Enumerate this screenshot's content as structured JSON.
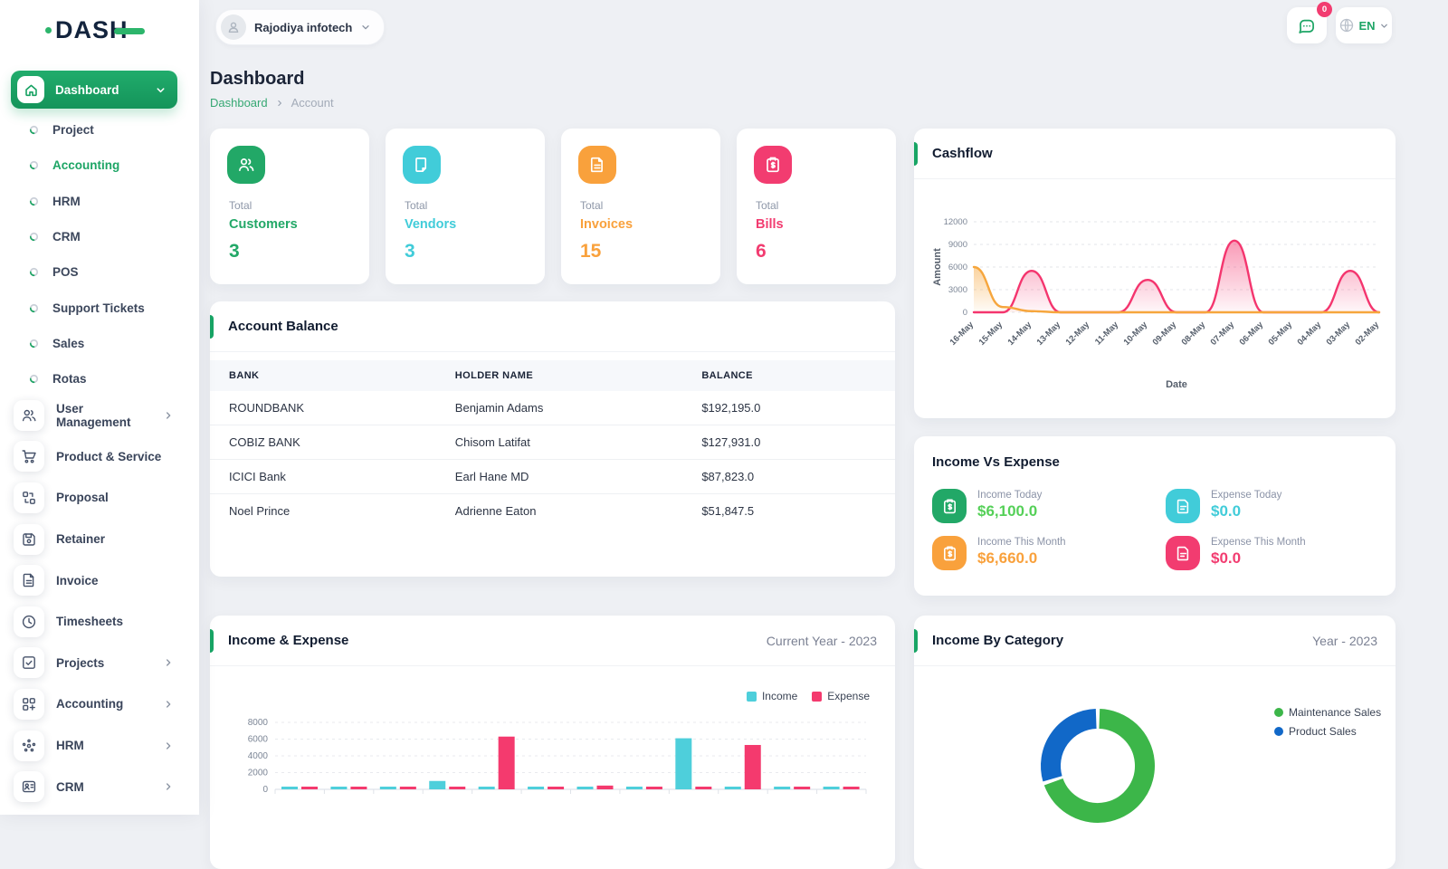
{
  "colors": {
    "primary_green": "#1da565",
    "cyan": "#41ccd9",
    "orange": "#f9a13c",
    "pink": "#f23c70",
    "donut_green": "#3cb649",
    "donut_blue": "#1168c8"
  },
  "logo": {
    "text": "DASH"
  },
  "topbar": {
    "company": "Rajodiya infotech",
    "messages_badge": "0",
    "language": "EN"
  },
  "sidebar": {
    "dashboard": {
      "label": "Dashboard"
    },
    "sub_items": [
      {
        "label": "Project"
      },
      {
        "label": "Accounting",
        "active": true
      },
      {
        "label": "HRM"
      },
      {
        "label": "CRM"
      },
      {
        "label": "POS"
      },
      {
        "label": "Support Tickets"
      },
      {
        "label": "Sales"
      },
      {
        "label": "Rotas"
      }
    ],
    "menu_items": [
      {
        "label": "User Management",
        "icon": "users-icon",
        "chevron": true
      },
      {
        "label": "Product & Service",
        "icon": "cart-icon",
        "chevron": false
      },
      {
        "label": "Proposal",
        "icon": "swap-icon",
        "chevron": false
      },
      {
        "label": "Retainer",
        "icon": "save-icon",
        "chevron": false
      },
      {
        "label": "Invoice",
        "icon": "invoice-icon",
        "chevron": false
      },
      {
        "label": "Timesheets",
        "icon": "clock-icon",
        "chevron": false
      },
      {
        "label": "Projects",
        "icon": "check-square-icon",
        "chevron": true
      },
      {
        "label": "Accounting",
        "icon": "grid-plus-icon",
        "chevron": true
      },
      {
        "label": "HRM",
        "icon": "hrm-icon",
        "chevron": true
      },
      {
        "label": "CRM",
        "icon": "crm-icon",
        "chevron": true
      }
    ]
  },
  "page": {
    "title": "Dashboard",
    "breadcrumb_root": "Dashboard",
    "breadcrumb_current": "Account"
  },
  "stats": [
    {
      "total_label": "Total",
      "name": "Customers",
      "value": "3",
      "color": "#22a867",
      "icon": "users-icon"
    },
    {
      "total_label": "Total",
      "name": "Vendors",
      "value": "3",
      "color": "#41ccd9",
      "icon": "document-icon"
    },
    {
      "total_label": "Total",
      "name": "Invoices",
      "value": "15",
      "color": "#f9a13c",
      "icon": "invoice-icon"
    },
    {
      "total_label": "Total",
      "name": "Bills",
      "value": "6",
      "color": "#f23c70",
      "icon": "clipboard-dollar-icon"
    }
  ],
  "account_balance": {
    "title": "Account Balance",
    "columns": [
      "BANK",
      "HOLDER NAME",
      "BALANCE"
    ],
    "rows": [
      [
        "ROUNDBANK",
        "Benjamin Adams",
        "$192,195.0"
      ],
      [
        "COBIZ BANK",
        "Chisom Latifat",
        "$127,931.0"
      ],
      [
        "ICICI Bank",
        "Earl Hane MD",
        "$87,823.0"
      ],
      [
        "Noel Prince",
        "Adrienne Eaton",
        "$51,847.5"
      ]
    ]
  },
  "cashflow": {
    "title": "Cashflow"
  },
  "income_vs_expense": {
    "title": "Income Vs Expense",
    "items": [
      {
        "label": "Income Today",
        "value": "$6,100.0",
        "value_color": "#55d058",
        "icon_bg": "#22a867",
        "icon": "clipboard-dollar-icon"
      },
      {
        "label": "Expense Today",
        "value": "$0.0",
        "value_color": "#41ccd9",
        "icon_bg": "#41ccd9",
        "icon": "file-icon"
      },
      {
        "label": "Income This Month",
        "value": "$6,660.0",
        "value_color": "#f9a13c",
        "icon_bg": "#f9a13c",
        "icon": "clipboard-dollar-icon"
      },
      {
        "label": "Expense This Month",
        "value": "$0.0",
        "value_color": "#f23c70",
        "icon_bg": "#f23c70",
        "icon": "file-icon"
      }
    ]
  },
  "income_expense": {
    "title": "Income & Expense",
    "period": "Current Year - 2023"
  },
  "income_by_category": {
    "title": "Income By Category",
    "period": "Year - 2023"
  },
  "chart_data": [
    {
      "id": "cashflow",
      "type": "area",
      "title": "Cashflow",
      "xlabel": "Date",
      "ylabel": "Amount",
      "ylim": [
        0,
        12000
      ],
      "yticks": [
        0,
        3000,
        6000,
        9000,
        12000
      ],
      "grid": true,
      "x": [
        "16-May",
        "15-May",
        "14-May",
        "13-May",
        "12-May",
        "11-May",
        "10-May",
        "09-May",
        "08-May",
        "07-May",
        "06-May",
        "05-May",
        "04-May",
        "03-May",
        "02-May"
      ],
      "series": [
        {
          "name": "orange-series",
          "color": "#f6a63d",
          "values": [
            6000,
            700,
            150,
            0,
            0,
            0,
            0,
            0,
            0,
            0,
            0,
            0,
            0,
            0,
            0
          ]
        },
        {
          "name": "pink-series",
          "color": "#f4356e",
          "values": [
            0,
            0,
            5500,
            0,
            0,
            0,
            4300,
            0,
            0,
            9500,
            0,
            0,
            0,
            5500,
            0
          ]
        }
      ]
    },
    {
      "id": "income_expense",
      "type": "bar",
      "title": "Income & Expense",
      "period": "Current Year - 2023",
      "ylim": [
        0,
        8000
      ],
      "yticks": [
        0,
        2000,
        4000,
        6000,
        8000
      ],
      "grid": true,
      "legend_position": "top-right",
      "categories": [
        "",
        "",
        "",
        "",
        "",
        "",
        "",
        "",
        "",
        "",
        "",
        ""
      ],
      "series": [
        {
          "name": "Income",
          "color": "#4ecfdb",
          "values": [
            250,
            150,
            150,
            1000,
            120,
            150,
            220,
            150,
            6100,
            120,
            150,
            150
          ]
        },
        {
          "name": "Expense",
          "color": "#f43a6e",
          "values": [
            150,
            150,
            150,
            150,
            6300,
            150,
            450,
            150,
            150,
            5300,
            150,
            150
          ]
        }
      ]
    },
    {
      "id": "income_by_category",
      "type": "pie",
      "title": "Income By Category",
      "period": "Year - 2023",
      "labels": [
        "Maintenance Sales",
        "Product Sales"
      ],
      "values": [
        70,
        30
      ],
      "colors": [
        "#3cb649",
        "#1168c8"
      ],
      "legend_position": "right"
    }
  ]
}
